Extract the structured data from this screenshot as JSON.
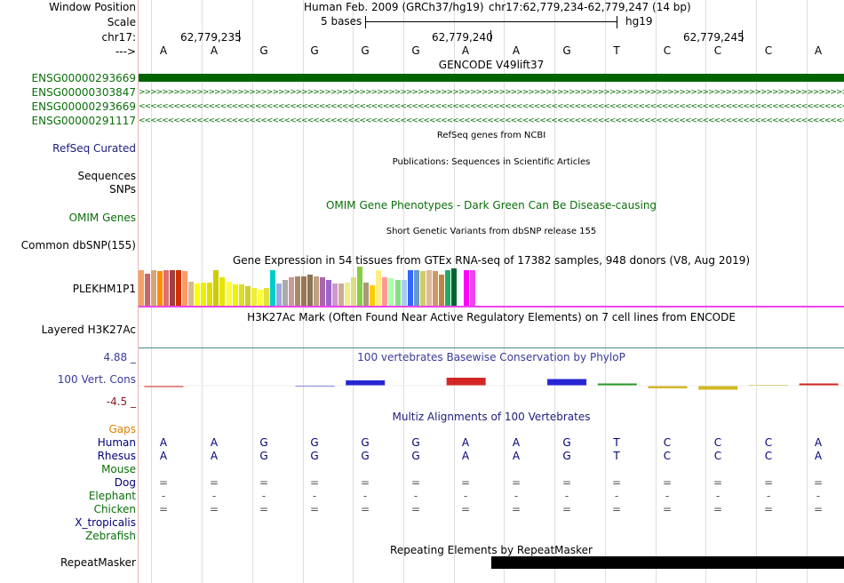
{
  "header": {
    "window_position_label": "Window Position",
    "scale_label": "Scale",
    "chrom_label": "chr17:",
    "arrow_label": "--->",
    "assembly_text": "Human Feb. 2009 (GRCh37/hg19)",
    "position_text": "chr17:62,779,234-62,779,247 (14 bp)",
    "scale_text": "5 bases",
    "db_text": "hg19",
    "coord_labels": [
      "62,779,235",
      "62,779,240",
      "62,779,245"
    ]
  },
  "bases": [
    "A",
    "A",
    "G",
    "G",
    "G",
    "G",
    "A",
    "A",
    "G",
    "T",
    "C",
    "C",
    "C",
    "A"
  ],
  "gencode": {
    "title": "GENCODE V49lift37",
    "tracks": [
      "ENSG00000293669",
      "ENSG00000303847",
      "ENSG00000293669",
      "ENSG00000291117"
    ],
    "color": "#006400"
  },
  "refseq": {
    "title": "RefSeq genes from NCBI",
    "label": "RefSeq Curated"
  },
  "publications": {
    "title": "Publications: Sequences in Scientific Articles",
    "label_sequences": "Sequences",
    "label_snps": "SNPs"
  },
  "omim": {
    "title": "OMIM Gene Phenotypes - Dark Green Can Be Disease-causing",
    "label": "OMIM Genes"
  },
  "dbsnp": {
    "title": "Short Genetic Variants from dbSNP release 155",
    "label": "Common dbSNP(155)"
  },
  "gtex": {
    "title": "Gene Expression in 54 tissues from GTEx RNA-seq of 17382 samples, 948 donors (V8, Aug 2019)",
    "label": "PLEKHM1P1",
    "bar_levels": [
      0.92,
      0.82,
      0.92,
      0.88,
      0.92,
      0.92,
      0.92,
      0.88,
      0.62,
      0.56,
      0.58,
      0.58,
      0.9,
      0.72,
      0.62,
      0.54,
      0.54,
      0.5,
      0.46,
      0.42,
      0.46,
      0.9,
      0.56,
      0.66,
      0.72,
      0.76,
      0.76,
      0.8,
      0.74,
      0.72,
      0.66,
      0.56,
      0.56,
      0.6,
      0.72,
      1.0,
      0.58,
      0.52,
      0.9,
      0.72,
      0.7,
      0.66,
      0.66,
      0.92,
      0.92,
      0.88,
      0.92,
      0.88,
      0.8,
      0.92,
      0.95,
      1.0,
      0.92,
      0.92
    ],
    "bar_colors": [
      "#f4a460",
      "#c66",
      "#d2a679",
      "#ff8c00",
      "#e07070",
      "#a04040",
      "#cc3300",
      "#ff9966",
      "#d8b890",
      "#ffff00",
      "#eeee00",
      "#dddd00",
      "#cccc00",
      "#e5e500",
      "#ffff33",
      "#f0f000",
      "#dddd22",
      "#cccc33",
      "#eeee33",
      "#ffff44",
      "#e0e040",
      "#00cccc",
      "#99aadd",
      "#aaaaaa",
      "#cc9999",
      "#aa8866",
      "#997755",
      "#8b7355",
      "#c0a080",
      "#aa66aa",
      "#9966cc",
      "#cc99cc",
      "#ccaa99",
      "#eeee88",
      "#dddd88",
      "#88cc44",
      "#aa9977",
      "#ffcc00",
      "#ffee88",
      "#ff9999",
      "#aaffaa",
      "#88dd88",
      "#aaccee",
      "#3366ff",
      "#6699cc",
      "#cccc66",
      "#ddbb99",
      "#cc9966",
      "#bb8844",
      "#22aa66",
      "#006633",
      "#ffffff",
      "#ff00ff",
      "#ee44ee"
    ]
  },
  "h3k27ac": {
    "title": "H3K27Ac Mark (Often Found Near Active Regulatory Elements) on 7 cell lines from ENCODE",
    "label": "Layered H3K27Ac"
  },
  "conservation": {
    "title": "100 vertebrates Basewise Conservation by PhyloP",
    "label": "100 Vert. Cons",
    "ymax": "4.88 _",
    "ymin": "-4.5 _",
    "scores": [
      -0.3,
      0,
      0,
      -0.2,
      1.2,
      0.1,
      1.8,
      0,
      1.5,
      0.5,
      -0.6,
      -0.9,
      0.2,
      0.5
    ]
  },
  "multiz": {
    "title": "Multiz Alignments of 100 Vertebrates",
    "gaps_label": "Gaps",
    "species": [
      {
        "name": "Human",
        "row": [
          "A",
          "A",
          "G",
          "G",
          "G",
          "G",
          "A",
          "A",
          "G",
          "T",
          "C",
          "C",
          "C",
          "A"
        ]
      },
      {
        "name": "Rhesus",
        "row": [
          "A",
          "A",
          "G",
          "G",
          "G",
          "G",
          "A",
          "A",
          "G",
          "T",
          "C",
          "C",
          "C",
          "A"
        ]
      },
      {
        "name": "Mouse",
        "row": [
          "",
          "",
          "",
          "",
          "",
          "",
          "",
          "",
          "",
          "",
          "",
          "",
          "",
          ""
        ]
      },
      {
        "name": "Dog",
        "row": [
          "=",
          "=",
          "=",
          "=",
          "=",
          "=",
          "=",
          "=",
          "=",
          "=",
          "=",
          "=",
          "=",
          "="
        ]
      },
      {
        "name": "Elephant",
        "row": [
          "-",
          "-",
          "-",
          "-",
          "-",
          "-",
          "-",
          "-",
          "-",
          "-",
          "-",
          "-",
          "-",
          "-"
        ]
      },
      {
        "name": "Chicken",
        "row": [
          "=",
          "=",
          "=",
          "=",
          "=",
          "=",
          "=",
          "=",
          "=",
          "=",
          "=",
          "=",
          "=",
          "="
        ]
      },
      {
        "name": "X_tropicalis",
        "row": [
          "",
          "",
          "",
          "",
          "",
          "",
          "",
          "",
          "",
          "",
          "",
          "",
          "",
          ""
        ]
      },
      {
        "name": "Zebrafish",
        "row": [
          "",
          "",
          "",
          "",
          "",
          "",
          "",
          "",
          "",
          "",
          "",
          "",
          "",
          ""
        ]
      }
    ]
  },
  "repeatmasker": {
    "title": "Repeating Elements by RepeatMasker",
    "label": "RepeatMasker",
    "start_base_fraction": 0.5
  }
}
